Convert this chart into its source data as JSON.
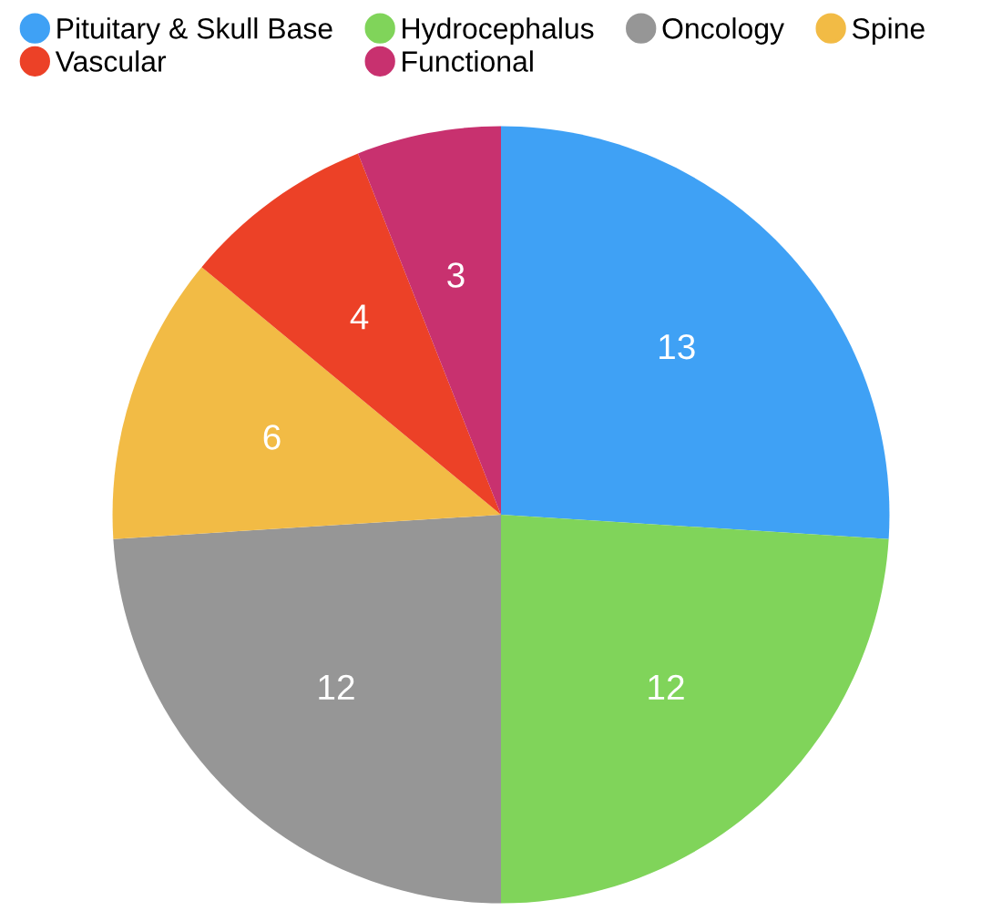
{
  "chart_data": {
    "type": "pie",
    "categories": [
      "Pituitary & Skull Base",
      "Hydrocephalus",
      "Oncology",
      "Spine",
      "Vascular",
      "Functional"
    ],
    "values": [
      13,
      12,
      12,
      6,
      4,
      3
    ],
    "colors": [
      "#3fa1f5",
      "#80d45a",
      "#969696",
      "#f2bb45",
      "#ec4127",
      "#c8316f"
    ],
    "data_labels": true,
    "legend": "top"
  }
}
